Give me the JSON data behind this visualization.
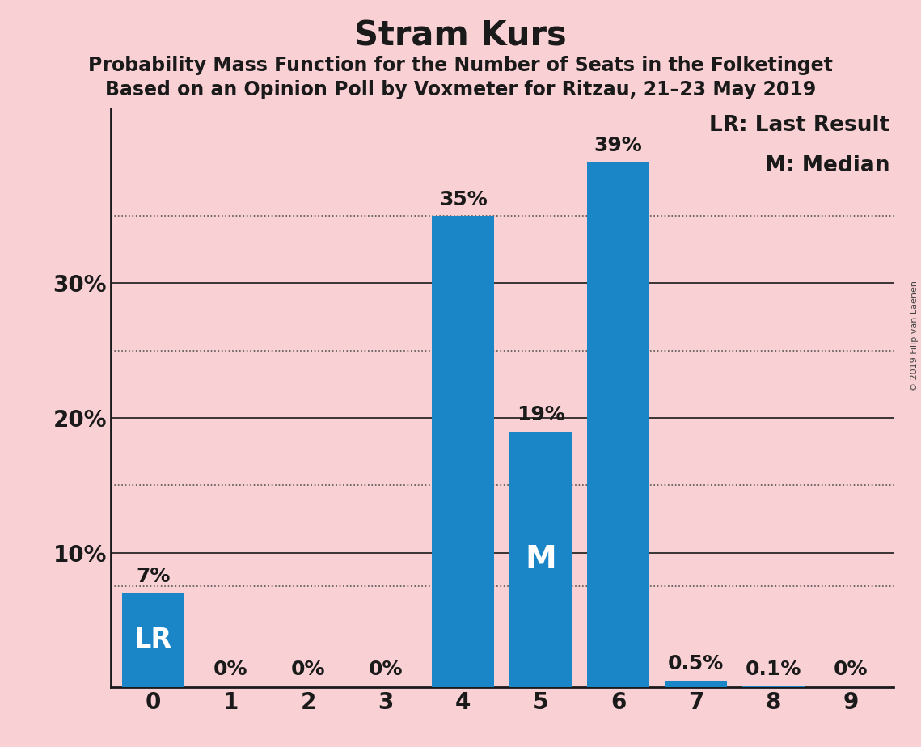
{
  "title": "Stram Kurs",
  "subtitle1": "Probability Mass Function for the Number of Seats in the Folketinget",
  "subtitle2": "Based on an Opinion Poll by Voxmeter for Ritzau, 21–23 May 2019",
  "categories": [
    0,
    1,
    2,
    3,
    4,
    5,
    6,
    7,
    8,
    9
  ],
  "values": [
    7.0,
    0.0,
    0.0,
    0.0,
    35.0,
    19.0,
    39.0,
    0.5,
    0.1,
    0.0
  ],
  "bar_color": "#1a86c8",
  "background_color": "#f9d0d3",
  "label_color_outside": "#1a1a1a",
  "label_color_inside": "#ffffff",
  "bar_labels": [
    "7%",
    "0%",
    "0%",
    "0%",
    "35%",
    "19%",
    "39%",
    "0.5%",
    "0.1%",
    "0%"
  ],
  "lr_bar": 0,
  "median_bar": 5,
  "ylim": [
    0,
    43
  ],
  "solid_lines": [
    10,
    20,
    30
  ],
  "dotted_lines": [
    7.5,
    15,
    25,
    35
  ],
  "legend_text1": "LR: Last Result",
  "legend_text2": "M: Median",
  "copyright_text": "© 2019 Filip van Laenen",
  "title_fontsize": 30,
  "subtitle_fontsize": 17,
  "tick_fontsize": 20,
  "bar_label_fontsize": 18,
  "legend_fontsize": 19,
  "lr_fontsize": 24,
  "m_fontsize": 28
}
